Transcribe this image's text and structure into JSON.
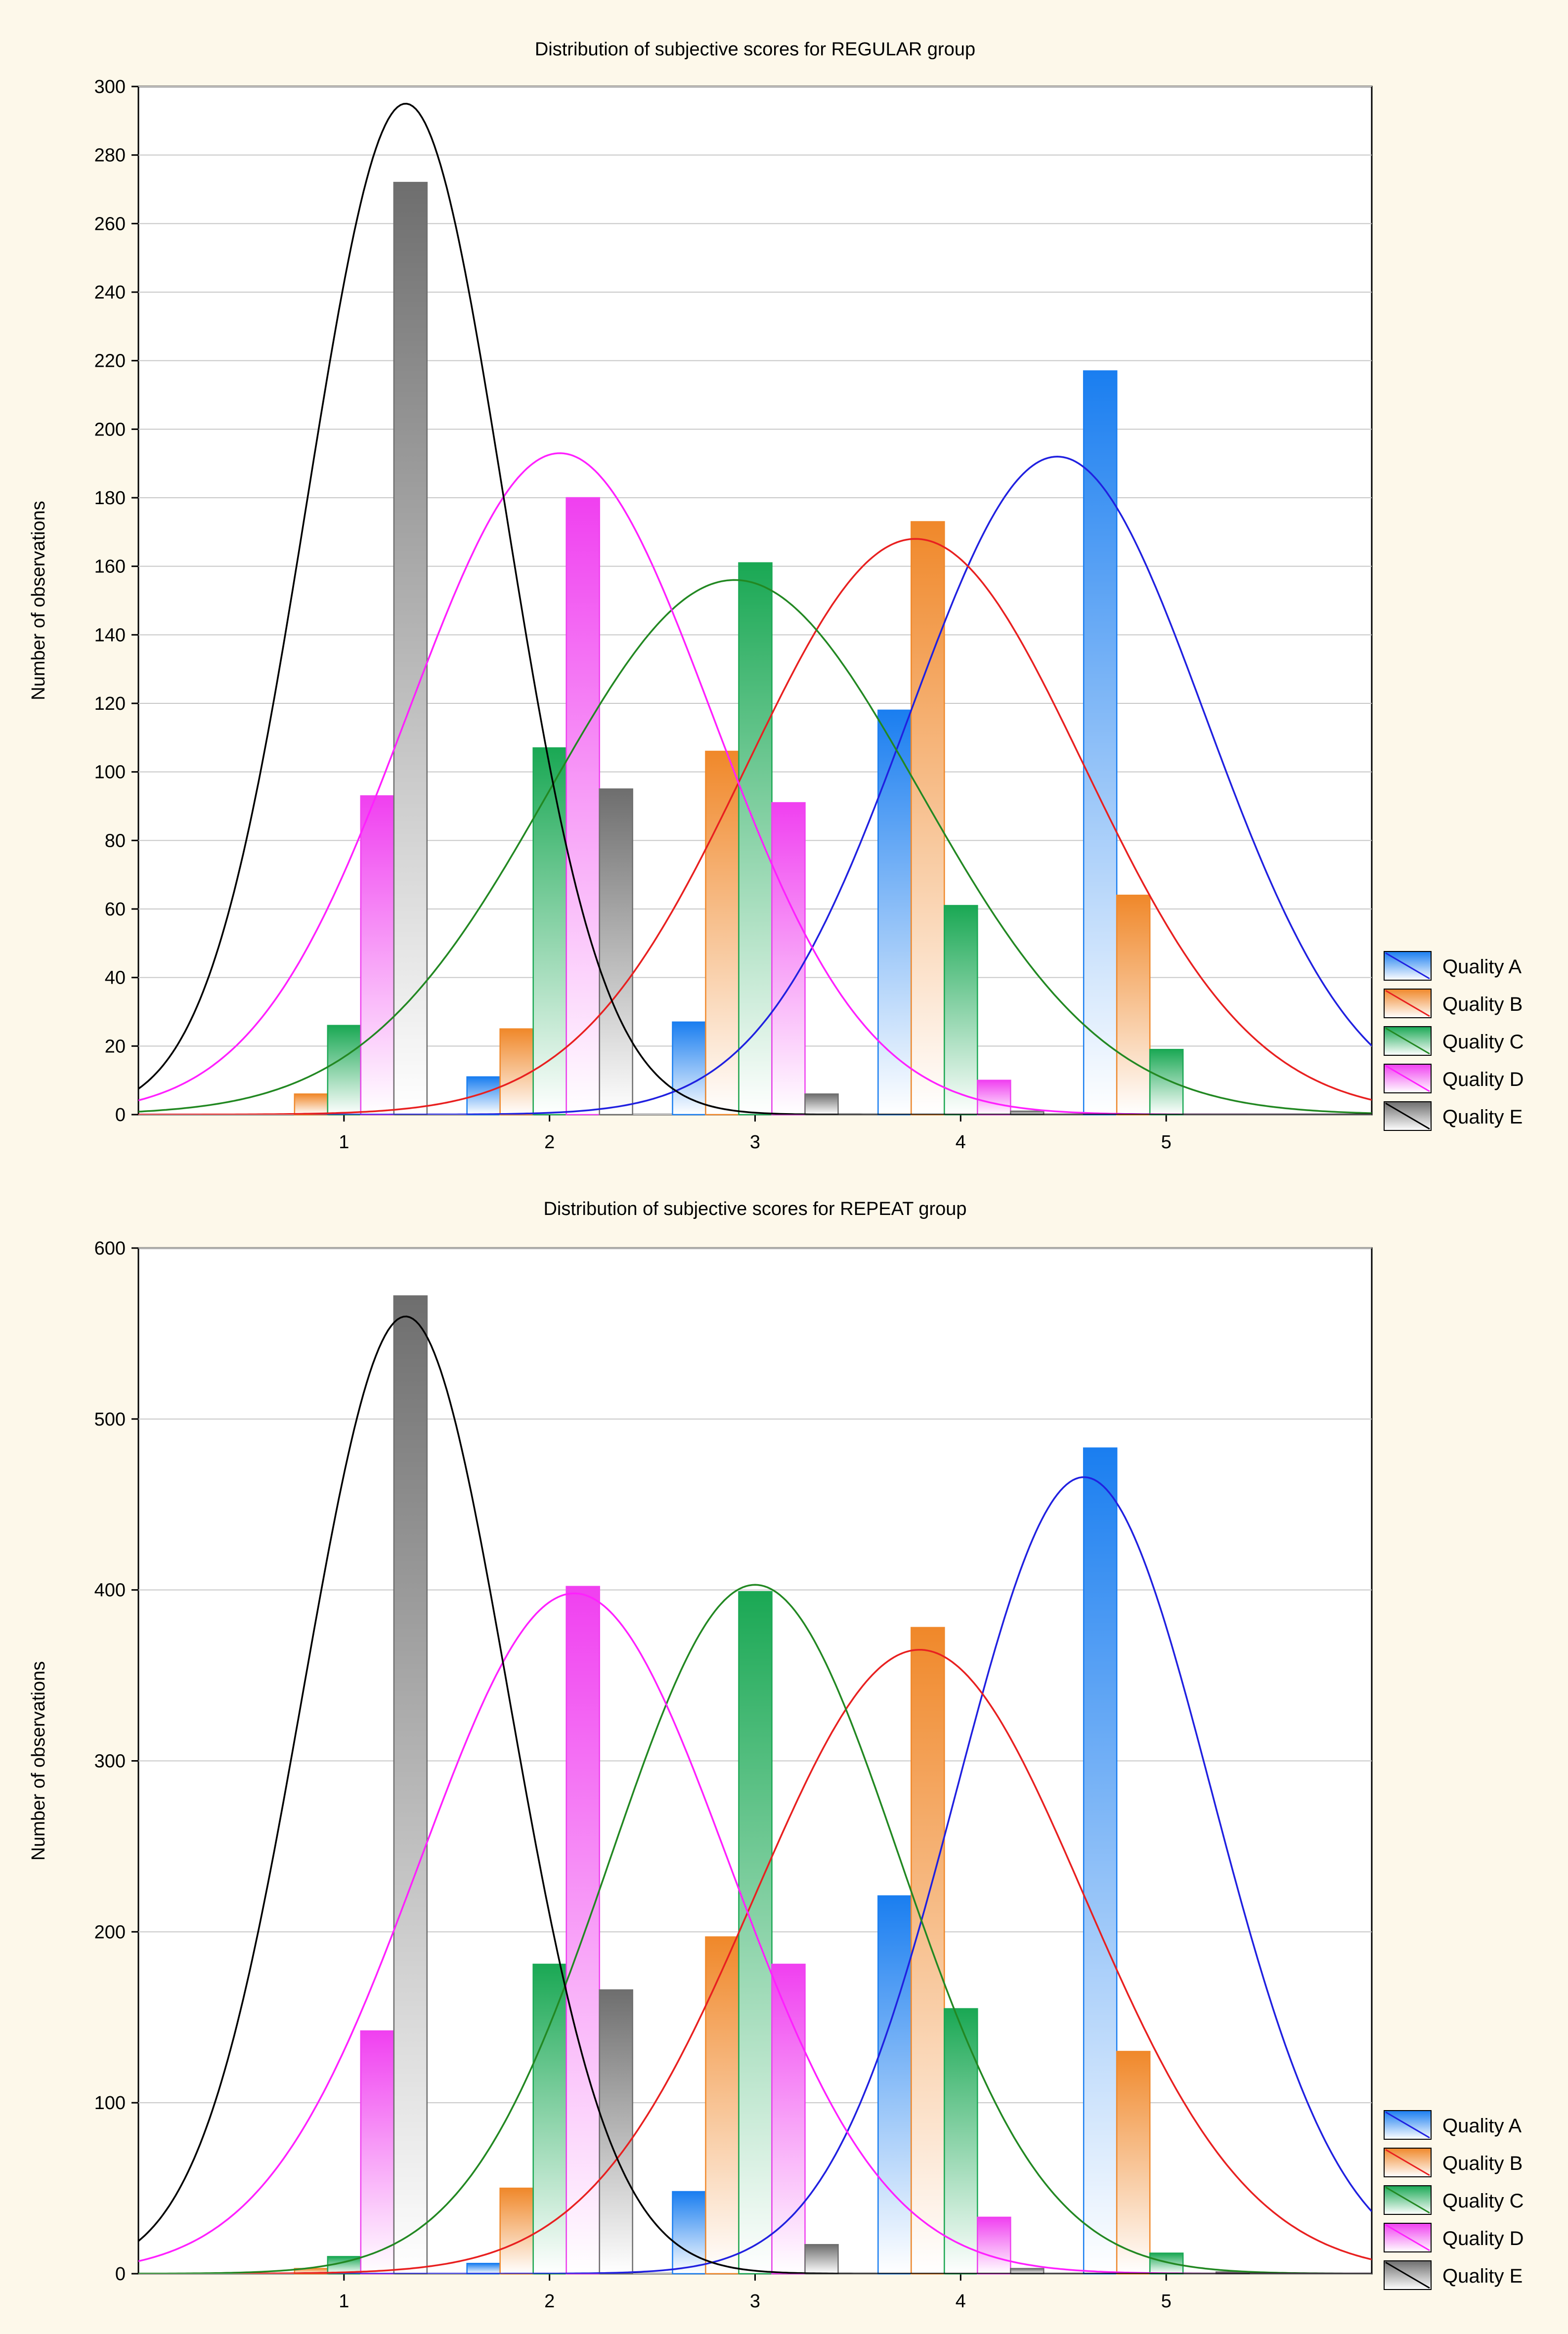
{
  "colors": {
    "background": "#fdf8ea",
    "quality_a": "#1a7ef0",
    "quality_b": "#f0882a",
    "quality_c": "#1aa854",
    "quality_d": "#f040f0",
    "quality_e": "#6e6e6e",
    "curve_a": "#2020e0",
    "curve_b": "#e82020",
    "curve_c": "#228822",
    "curve_d": "#ff20ff",
    "curve_e": "#000000"
  },
  "chart_data": [
    {
      "type": "bar",
      "title": "Distribution of subjective scores for REGULAR group",
      "ylabel": "Number of observations",
      "xlabel": "",
      "categories": [
        "1",
        "2",
        "3",
        "4",
        "5"
      ],
      "xlim": [
        0,
        6
      ],
      "ylim": [
        0,
        300
      ],
      "yticks": [
        "0",
        "20",
        "40",
        "60",
        "80",
        "100",
        "120",
        "140",
        "160",
        "180",
        "200",
        "220",
        "240",
        "260",
        "280",
        "300"
      ],
      "grid": true,
      "legend_position": "right-bottom",
      "series": [
        {
          "name": "Quality A",
          "values": [
            0,
            11,
            27,
            118,
            217
          ],
          "fit": {
            "mean": 4.47,
            "sd": 0.72,
            "peak": 192
          }
        },
        {
          "name": "Quality B",
          "values": [
            6,
            25,
            106,
            173,
            64
          ],
          "fit": {
            "mean": 3.78,
            "sd": 0.82,
            "peak": 168
          }
        },
        {
          "name": "Quality C",
          "values": [
            26,
            107,
            161,
            61,
            19
          ],
          "fit": {
            "mean": 2.9,
            "sd": 0.9,
            "peak": 156
          }
        },
        {
          "name": "Quality D",
          "values": [
            93,
            180,
            91,
            10,
            0
          ],
          "fit": {
            "mean": 2.05,
            "sd": 0.74,
            "peak": 193
          }
        },
        {
          "name": "Quality E",
          "values": [
            272,
            95,
            6,
            1,
            0
          ],
          "fit": {
            "mean": 1.3,
            "sd": 0.48,
            "peak": 295
          }
        }
      ]
    },
    {
      "type": "bar",
      "title": "Distribution of subjective scores for REPEAT group",
      "ylabel": "Number of observations",
      "xlabel": "",
      "categories": [
        "1",
        "2",
        "3",
        "4",
        "5"
      ],
      "xlim": [
        0,
        6
      ],
      "ylim": [
        0,
        600
      ],
      "yticks": [
        "0",
        "100",
        "200",
        "300",
        "400",
        "500",
        "600"
      ],
      "grid": true,
      "legend_position": "right-bottom",
      "series": [
        {
          "name": "Quality A",
          "values": [
            0,
            6,
            48,
            221,
            483
          ],
          "fit": {
            "mean": 4.6,
            "sd": 0.62,
            "peak": 466
          }
        },
        {
          "name": "Quality B",
          "values": [
            3,
            50,
            197,
            378,
            130
          ],
          "fit": {
            "mean": 3.8,
            "sd": 0.8,
            "peak": 365
          }
        },
        {
          "name": "Quality C",
          "values": [
            10,
            181,
            399,
            155,
            12
          ],
          "fit": {
            "mean": 3.0,
            "sd": 0.7,
            "peak": 403
          }
        },
        {
          "name": "Quality D",
          "values": [
            142,
            402,
            181,
            33,
            0
          ],
          "fit": {
            "mean": 2.12,
            "sd": 0.75,
            "peak": 398
          }
        },
        {
          "name": "Quality E",
          "values": [
            572,
            166,
            17,
            3,
            1
          ],
          "fit": {
            "mean": 1.3,
            "sd": 0.5,
            "peak": 560
          }
        }
      ]
    }
  ]
}
